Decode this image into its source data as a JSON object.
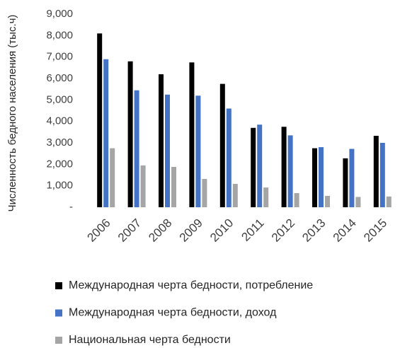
{
  "chart_data": {
    "type": "bar",
    "ylabel": "Численность бедного населения (тыс.ч)",
    "categories": [
      "2006",
      "2007",
      "2008",
      "2009",
      "2010",
      "2011",
      "2012",
      "2013",
      "2014",
      "2015"
    ],
    "series": [
      {
        "name": "Международная черта бедности, потребление",
        "color": "#000000",
        "values": [
          8100,
          6800,
          6200,
          6750,
          5750,
          3700,
          3750,
          2750,
          2280,
          3330
        ]
      },
      {
        "name": "Международная черта бедности, доход",
        "color": "#4472c4",
        "values": [
          6900,
          5450,
          5250,
          5200,
          4600,
          3850,
          3350,
          2800,
          2720,
          3000
        ]
      },
      {
        "name": "Национальная черта бедности",
        "color": "#a5a5a5",
        "values": [
          2750,
          1950,
          1880,
          1320,
          1090,
          920,
          660,
          530,
          480,
          500
        ]
      }
    ],
    "ylim": [
      0,
      9000
    ],
    "yticks": [
      {
        "value": 0,
        "label": "-"
      },
      {
        "value": 1000,
        "label": "1,000"
      },
      {
        "value": 2000,
        "label": "2,000"
      },
      {
        "value": 3000,
        "label": "3,000"
      },
      {
        "value": 4000,
        "label": "4,000"
      },
      {
        "value": 5000,
        "label": "5,000"
      },
      {
        "value": 6000,
        "label": "6,000"
      },
      {
        "value": 7000,
        "label": "7,000"
      },
      {
        "value": 8000,
        "label": "8,000"
      },
      {
        "value": 9000,
        "label": "9,000"
      }
    ],
    "legend": "bottom"
  }
}
